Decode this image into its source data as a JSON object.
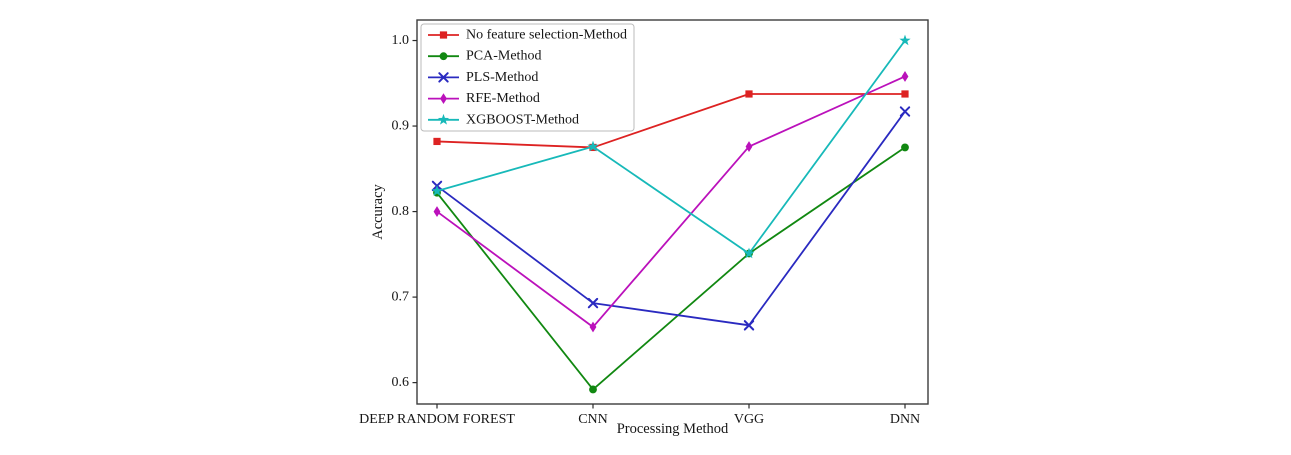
{
  "figure": {
    "background": "#ffffff",
    "frame_color": "#3c3c3c",
    "tick_color": "#2a2a2a",
    "text_color": "#161616",
    "legend_border_color": "#bbbbbb",
    "legend_background": "#ffffff"
  },
  "chart_data": {
    "type": "line",
    "title": "",
    "xlabel": "Processing Method",
    "ylabel": "Accuracy",
    "categories": [
      "DEEP RANDOM FOREST",
      "CNN",
      "VGG",
      "DNN"
    ],
    "ytick_values": [
      0.6,
      0.7,
      0.8,
      0.9,
      1.0
    ],
    "ytick_labels": [
      "0.6",
      "0.7",
      "0.8",
      "0.9",
      "1.0"
    ],
    "ylim": [
      0.575,
      1.024
    ],
    "grid": false,
    "legend_position": "upper-left",
    "series": [
      {
        "name": "No feature selection-Method",
        "color": "#dd2222",
        "marker": "square",
        "values": [
          0.882,
          0.875,
          0.9375,
          0.9375
        ]
      },
      {
        "name": "PCA-Method",
        "color": "#118811",
        "marker": "circle",
        "values": [
          0.822,
          0.592,
          0.751,
          0.875
        ]
      },
      {
        "name": "PLS-Method",
        "color": "#2a2ac0",
        "marker": "x",
        "values": [
          0.83,
          0.693,
          0.667,
          0.917
        ]
      },
      {
        "name": "RFE-Method",
        "color": "#bb11bb",
        "marker": "diamond",
        "values": [
          0.8,
          0.665,
          0.876,
          0.958
        ]
      },
      {
        "name": "XGBOOST-Method",
        "color": "#17b9b9",
        "marker": "star",
        "values": [
          0.824,
          0.876,
          0.751,
          1.0
        ]
      }
    ]
  }
}
